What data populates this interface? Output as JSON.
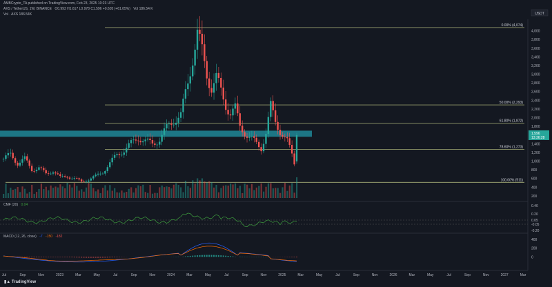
{
  "header": {
    "publisher": "AMBCrypto_TA published on TradingView.com, Feb 23, 2025 10:23 UTC",
    "symbol": "AXS / TetherUS, 1W, BINANCE",
    "ohlc": "O0.993 H1.617 L0.978 C1.596 +0.605 (+61.05%)",
    "vol_label": "Vol 186.54 K",
    "vol_line": "Vol · AXS 186.54K",
    "currency": "USDT"
  },
  "indicators": {
    "cmf_label": "CMF (20)",
    "cmf_value": "0.04",
    "macd_label": "MACD (12, 26, close)",
    "macd_values": [
      "-7",
      "-150",
      "-182"
    ]
  },
  "logo": "TradingView",
  "colors": {
    "bg": "#141821",
    "up": "#26a69a",
    "down": "#ef5350",
    "fib": "#c8d08a",
    "zone": "#1f8f9f",
    "cmf": "#3e9e3e",
    "macd": "#2962ff",
    "signal": "#ff6d00"
  },
  "chart_data": {
    "type": "candlestick",
    "title": "AXS / TetherUS, 1W, BINANCE",
    "price_axis": {
      "unit": "USDT",
      "ticks": [
        4000,
        3800,
        3600,
        3400,
        3200,
        3000,
        2800,
        2600,
        2400,
        2200,
        2000,
        1800,
        1600,
        1400,
        1200,
        1000,
        800,
        600,
        400,
        200
      ],
      "labels": [
        "4,000",
        "3,800",
        "3,600",
        "3,400",
        "3,200",
        "3,000",
        "2,800",
        "2,600",
        "2,400",
        "2,200",
        "2,000",
        "1,800",
        "1,600",
        "1,400",
        "1,200",
        "1,000",
        "800",
        "600",
        "400",
        "200"
      ],
      "last_price": "1.596",
      "countdown": "13:36:28"
    },
    "time_axis": [
      "Jul",
      "Sep",
      "Nov",
      "2023",
      "Mar",
      "May",
      "Jul",
      "Sep",
      "Nov",
      "2024",
      "Mar",
      "May",
      "Jul",
      "Sep",
      "Nov",
      "2025",
      "Mar",
      "May",
      "Jul",
      "Sep",
      "Nov",
      "2026",
      "Mar",
      "May",
      "Jul",
      "Sep",
      "Nov",
      "2027",
      "Mar"
    ],
    "fib_levels": [
      {
        "label": "0.00% (4,074)",
        "value": 4074
      },
      {
        "label": "50.00% (2,293)",
        "value": 2293
      },
      {
        "label": "61.80% (1,872)",
        "value": 1872
      },
      {
        "label": "78.60% (1,273)",
        "value": 1273
      },
      {
        "label": "100.00% (511)",
        "value": 511
      }
    ],
    "zone": {
      "top": 1700,
      "bottom": 1560
    },
    "price_path": [
      [
        0,
        1050
      ],
      [
        3,
        1150
      ],
      [
        6,
        950
      ],
      [
        9,
        1050
      ],
      [
        12,
        800
      ],
      [
        15,
        850
      ],
      [
        18,
        700
      ],
      [
        21,
        780
      ],
      [
        24,
        620
      ],
      [
        27,
        650
      ],
      [
        30,
        600
      ],
      [
        33,
        520
      ],
      [
        36,
        580
      ],
      [
        39,
        650
      ],
      [
        42,
        750
      ],
      [
        45,
        950
      ],
      [
        48,
        1150
      ],
      [
        51,
        1250
      ],
      [
        54,
        1400
      ],
      [
        57,
        1550
      ],
      [
        60,
        1450
      ],
      [
        63,
        1400
      ],
      [
        66,
        1500
      ],
      [
        69,
        1750
      ],
      [
        72,
        1950
      ],
      [
        75,
        2050
      ],
      [
        78,
        2800
      ],
      [
        80,
        3400
      ],
      [
        82,
        3950
      ],
      [
        84,
        3500
      ],
      [
        86,
        3000
      ],
      [
        88,
        2700
      ],
      [
        90,
        2900
      ],
      [
        92,
        2600
      ],
      [
        94,
        2300
      ],
      [
        96,
        2100
      ],
      [
        98,
        2200
      ],
      [
        100,
        1800
      ],
      [
        103,
        1600
      ],
      [
        106,
        1450
      ],
      [
        109,
        1300
      ],
      [
        111,
        1650
      ],
      [
        113,
        2250
      ],
      [
        115,
        1900
      ],
      [
        117,
        1700
      ],
      [
        120,
        1450
      ],
      [
        122,
        1150
      ],
      [
        123,
        950
      ],
      [
        124,
        1596
      ]
    ],
    "volume_note": "weekly volume bars with spike on latest week",
    "cmf": {
      "range": [
        -0.2,
        0.4
      ],
      "ticks": [
        "0.40",
        "0.20",
        "0.05",
        "-0.05",
        "-0.20"
      ],
      "last": 0.04
    },
    "macd": {
      "range": [
        -200,
        400
      ],
      "ticks": [
        "400",
        "200",
        "0"
      ],
      "values": {
        "macd": -7,
        "signal": -150,
        "histogram": -182
      }
    }
  }
}
